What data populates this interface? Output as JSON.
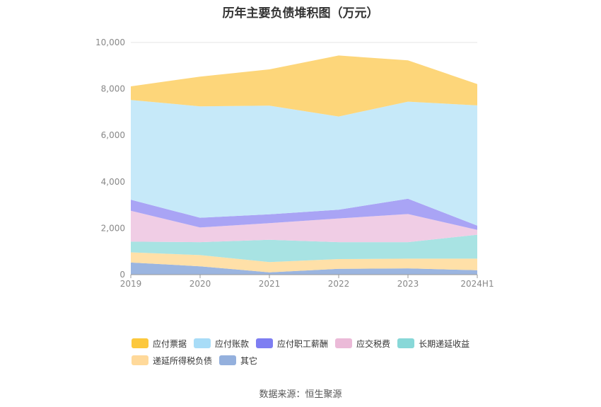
{
  "title": "历年主要负债堆积图（万元）",
  "source": "数据来源：恒生聚源",
  "chart_data": {
    "type": "area",
    "stacked": true,
    "x": [
      "2019",
      "2020",
      "2021",
      "2022",
      "2023",
      "2024H1"
    ],
    "y_ticks": [
      "0",
      "2,000",
      "4,000",
      "6,000",
      "8,000",
      "10,000"
    ],
    "ylim": [
      0,
      10000
    ],
    "grid": true,
    "legend_position": "bottom",
    "series": [
      {
        "name": "其它",
        "color": "#9bb5e0",
        "values": [
          520,
          360,
          100,
          250,
          270,
          190
        ]
      },
      {
        "name": "递延所得税负债",
        "color": "#ffe0a8",
        "values": [
          440,
          480,
          440,
          420,
          420,
          500
        ]
      },
      {
        "name": "长期递延收益",
        "color": "#a8e3e3",
        "values": [
          460,
          560,
          960,
          730,
          710,
          1030
        ]
      },
      {
        "name": "应交税费",
        "color": "#f0cde5",
        "values": [
          1330,
          630,
          720,
          1020,
          1210,
          210
        ]
      },
      {
        "name": "应付职工薪酬",
        "color": "#a9a4f5",
        "values": [
          480,
          420,
          380,
          380,
          660,
          180
        ]
      },
      {
        "name": "应付账款",
        "color": "#c6e9f9",
        "values": [
          4290,
          4800,
          4680,
          4010,
          4180,
          5180
        ]
      },
      {
        "name": "应付票据",
        "color": "#fdd67a",
        "values": [
          590,
          1280,
          1560,
          2630,
          1780,
          920
        ]
      }
    ]
  },
  "legend": {
    "items": [
      {
        "name": "应付票据",
        "color": "#fcc83d"
      },
      {
        "name": "应付账款",
        "color": "#a8dcf7"
      },
      {
        "name": "应付职工薪酬",
        "color": "#7e7ef2"
      },
      {
        "name": "应交税费",
        "color": "#ebbad8"
      },
      {
        "name": "长期递延收益",
        "color": "#88d8d8"
      },
      {
        "name": "递延所得税负债",
        "color": "#ffd99a"
      },
      {
        "name": "其它",
        "color": "#94b0dd"
      }
    ]
  }
}
